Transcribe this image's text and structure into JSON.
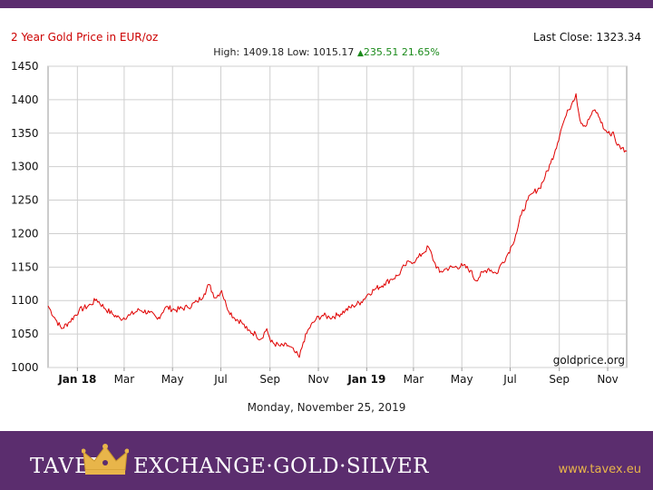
{
  "header": {
    "title": "2 Year Gold Price in EUR/oz",
    "last_close": "Last Close: 1323.34",
    "stats_prefix": "High: 1409.18 Low: 1015.17",
    "change": "235.51 21.65%"
  },
  "colors": {
    "line": "#e00000",
    "brand_band": "#5b2d6e",
    "change_up": "#1a8a1a",
    "url": "#e8b54a",
    "title": "#cc0000"
  },
  "chart_data": {
    "type": "line",
    "title": "2 Year Gold Price in EUR/oz",
    "xlabel": "",
    "ylabel": "",
    "ylim": [
      1000,
      1450
    ],
    "grid": true,
    "watermark": "goldprice.org",
    "y_ticks": [
      "1450",
      "1400",
      "1350",
      "1300",
      "1250",
      "1200",
      "1150",
      "1100",
      "1050",
      "1000"
    ],
    "x_ticks": [
      {
        "label": "Jan 18",
        "date": "2018-01-01",
        "bold": true
      },
      {
        "label": "Mar",
        "date": "2018-03-01",
        "bold": false
      },
      {
        "label": "May",
        "date": "2018-05-01",
        "bold": false
      },
      {
        "label": "Jul",
        "date": "2018-07-01",
        "bold": false
      },
      {
        "label": "Sep",
        "date": "2018-09-01",
        "bold": false
      },
      {
        "label": "Nov",
        "date": "2018-11-01",
        "bold": false
      },
      {
        "label": "Jan 19",
        "date": "2019-01-01",
        "bold": true
      },
      {
        "label": "Mar",
        "date": "2019-03-01",
        "bold": false
      },
      {
        "label": "May",
        "date": "2019-05-01",
        "bold": false
      },
      {
        "label": "Jul",
        "date": "2019-07-01",
        "bold": false
      },
      {
        "label": "Sep",
        "date": "2019-09-01",
        "bold": false
      },
      {
        "label": "Nov",
        "date": "2019-11-01",
        "bold": false
      }
    ],
    "x_range": [
      "2017-11-25",
      "2019-11-25"
    ],
    "series": [
      {
        "points": [
          [
            "2017-11-25",
            1092
          ],
          [
            "2017-12-03",
            1075
          ],
          [
            "2017-12-12",
            1058
          ],
          [
            "2017-12-22",
            1068
          ],
          [
            "2018-01-03",
            1085
          ],
          [
            "2018-01-18",
            1094
          ],
          [
            "2018-01-25",
            1102
          ],
          [
            "2018-02-05",
            1088
          ],
          [
            "2018-02-14",
            1080
          ],
          [
            "2018-02-24",
            1073
          ],
          [
            "2018-03-08",
            1078
          ],
          [
            "2018-03-20",
            1086
          ],
          [
            "2018-04-02",
            1082
          ],
          [
            "2018-04-12",
            1072
          ],
          [
            "2018-04-22",
            1090
          ],
          [
            "2018-05-05",
            1086
          ],
          [
            "2018-05-20",
            1090
          ],
          [
            "2018-06-01",
            1098
          ],
          [
            "2018-06-10",
            1110
          ],
          [
            "2018-06-16",
            1124
          ],
          [
            "2018-06-24",
            1104
          ],
          [
            "2018-07-02",
            1115
          ],
          [
            "2018-07-08",
            1092
          ],
          [
            "2018-07-17",
            1075
          ],
          [
            "2018-07-27",
            1068
          ],
          [
            "2018-08-04",
            1055
          ],
          [
            "2018-08-14",
            1050
          ],
          [
            "2018-08-20",
            1042
          ],
          [
            "2018-08-28",
            1058
          ],
          [
            "2018-09-02",
            1038
          ],
          [
            "2018-09-14",
            1032
          ],
          [
            "2018-09-24",
            1033
          ],
          [
            "2018-10-03",
            1022
          ],
          [
            "2018-10-08",
            1015
          ],
          [
            "2018-10-13",
            1038
          ],
          [
            "2018-10-20",
            1058
          ],
          [
            "2018-10-29",
            1072
          ],
          [
            "2018-11-06",
            1078
          ],
          [
            "2018-11-15",
            1075
          ],
          [
            "2018-11-25",
            1078
          ],
          [
            "2018-12-05",
            1085
          ],
          [
            "2018-12-15",
            1092
          ],
          [
            "2018-12-25",
            1098
          ],
          [
            "2019-01-03",
            1110
          ],
          [
            "2019-01-13",
            1118
          ],
          [
            "2019-01-23",
            1125
          ],
          [
            "2019-02-01",
            1132
          ],
          [
            "2019-02-10",
            1138
          ],
          [
            "2019-02-18",
            1152
          ],
          [
            "2019-02-24",
            1158
          ],
          [
            "2019-03-04",
            1160
          ],
          [
            "2019-03-12",
            1170
          ],
          [
            "2019-03-20",
            1180
          ],
          [
            "2019-03-27",
            1158
          ],
          [
            "2019-04-03",
            1142
          ],
          [
            "2019-04-12",
            1148
          ],
          [
            "2019-04-22",
            1150
          ],
          [
            "2019-05-02",
            1152
          ],
          [
            "2019-05-12",
            1145
          ],
          [
            "2019-05-18",
            1130
          ],
          [
            "2019-05-28",
            1142
          ],
          [
            "2019-06-04",
            1148
          ],
          [
            "2019-06-14",
            1140
          ],
          [
            "2019-06-20",
            1155
          ],
          [
            "2019-06-26",
            1165
          ],
          [
            "2019-07-03",
            1182
          ],
          [
            "2019-07-08",
            1198
          ],
          [
            "2019-07-15",
            1228
          ],
          [
            "2019-07-23",
            1250
          ],
          [
            "2019-07-31",
            1262
          ],
          [
            "2019-08-07",
            1268
          ],
          [
            "2019-08-14",
            1285
          ],
          [
            "2019-08-21",
            1305
          ],
          [
            "2019-08-27",
            1325
          ],
          [
            "2019-09-03",
            1355
          ],
          [
            "2019-09-08",
            1372
          ],
          [
            "2019-09-13",
            1385
          ],
          [
            "2019-09-18",
            1398
          ],
          [
            "2019-09-22",
            1409
          ],
          [
            "2019-09-27",
            1370
          ],
          [
            "2019-10-04",
            1360
          ],
          [
            "2019-10-10",
            1375
          ],
          [
            "2019-10-16",
            1385
          ],
          [
            "2019-10-22",
            1372
          ],
          [
            "2019-10-28",
            1355
          ],
          [
            "2019-11-04",
            1348
          ],
          [
            "2019-11-08",
            1352
          ],
          [
            "2019-11-13",
            1332
          ],
          [
            "2019-11-19",
            1328
          ],
          [
            "2019-11-25",
            1323
          ]
        ]
      }
    ]
  },
  "footer_text": {
    "date": "Monday, November 25, 2019",
    "brand_left": "TAVEX",
    "brand_right": "EXCHANGE·GOLD·SILVER",
    "url": "www.tavex.eu"
  }
}
